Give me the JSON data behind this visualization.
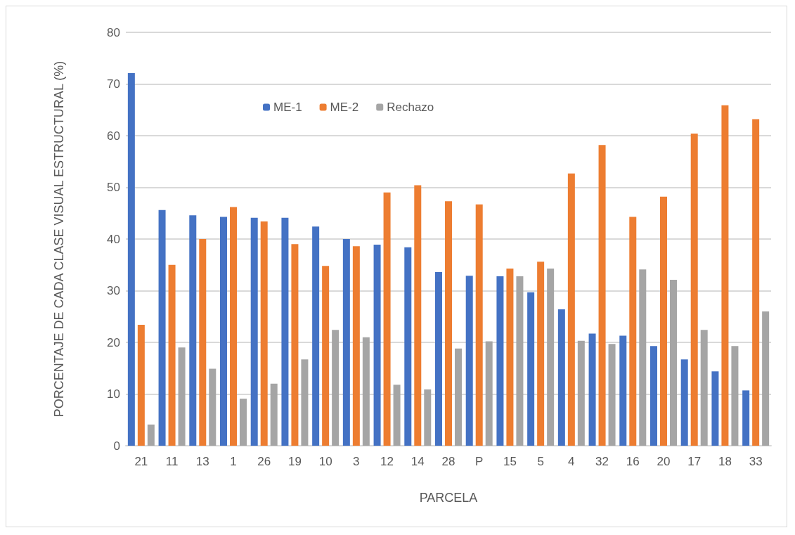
{
  "chart_data": {
    "type": "bar",
    "xlabel": "PARCELA",
    "ylabel": "PORCENTAJE DE CADA CLASE VISUAL ESTRUCTURAL (%)",
    "categories": [
      "21",
      "11",
      "13",
      "1",
      "26",
      "19",
      "10",
      "3",
      "12",
      "14",
      "28",
      "P",
      "15",
      "5",
      "4",
      "32",
      "16",
      "20",
      "17",
      "18",
      "33"
    ],
    "series": [
      {
        "name": "ME-1",
        "color": "#4472c4",
        "values": [
          72.1,
          45.6,
          44.6,
          44.3,
          44.1,
          44.1,
          42.4,
          40.0,
          38.9,
          38.4,
          33.6,
          32.9,
          32.8,
          29.7,
          26.4,
          21.7,
          21.3,
          19.3,
          16.7,
          14.4,
          10.7
        ]
      },
      {
        "name": "ME-2",
        "color": "#ed7d31",
        "values": [
          23.4,
          35.0,
          40.0,
          46.2,
          43.4,
          39.0,
          34.8,
          38.6,
          49.0,
          50.4,
          47.3,
          46.7,
          34.3,
          35.6,
          52.7,
          58.2,
          44.3,
          48.2,
          60.4,
          65.9,
          63.2
        ]
      },
      {
        "name": "Rechazo",
        "color": "#a5a5a5",
        "values": [
          4.1,
          19.0,
          14.9,
          9.1,
          12.0,
          16.7,
          22.4,
          21.0,
          11.8,
          10.9,
          18.8,
          20.2,
          32.8,
          34.3,
          20.3,
          19.7,
          34.1,
          32.1,
          22.4,
          19.3,
          26.0
        ]
      }
    ],
    "ylim": [
      0,
      80
    ],
    "yticks": [
      0,
      10,
      20,
      30,
      40,
      50,
      60,
      70,
      80
    ],
    "grid": "y",
    "legend": "top"
  }
}
